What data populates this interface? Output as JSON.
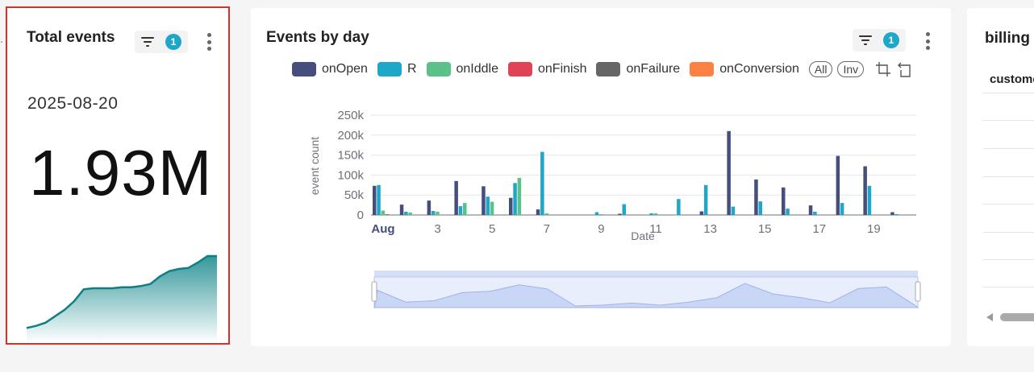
{
  "cards": {
    "total_events": {
      "title": "Total events",
      "filter_count": "1",
      "date": "2025-08-20",
      "value": "1.93M",
      "sparkline": [
        5,
        7,
        10,
        16,
        22,
        30,
        41,
        42,
        42,
        42,
        43,
        43,
        44,
        46,
        53,
        58,
        60,
        61,
        66,
        72,
        72
      ]
    },
    "events_by_day": {
      "title": "Events by day",
      "filter_count": "1",
      "legend_controls": {
        "all": "All",
        "inv": "Inv"
      }
    },
    "billing": {
      "title": "billing",
      "column_header": "custome"
    }
  },
  "colors": {
    "accent": "#1fa7c9",
    "selected_outline": "#d93025",
    "sparkline": "#0e7f86"
  },
  "chart_data": {
    "type": "bar",
    "xlabel": "Date",
    "ylabel": "event count",
    "ylim": [
      0,
      250000
    ],
    "yticks": [
      "0",
      "50k",
      "100k",
      "150k",
      "200k",
      "250k"
    ],
    "xticks": [
      "Aug",
      "3",
      "5",
      "7",
      "9",
      "11",
      "13",
      "15",
      "17",
      "19"
    ],
    "categories": [
      "Aug 1",
      "Aug 2",
      "Aug 3",
      "Aug 4",
      "Aug 5",
      "Aug 6",
      "Aug 7",
      "Aug 8",
      "Aug 9",
      "Aug 10",
      "Aug 11",
      "Aug 12",
      "Aug 13",
      "Aug 14",
      "Aug 15",
      "Aug 16",
      "Aug 17",
      "Aug 18",
      "Aug 19",
      "Aug 20"
    ],
    "series": [
      {
        "name": "onOpen",
        "color": "#454e7d",
        "values": [
          73000,
          26000,
          36000,
          85000,
          72000,
          43000,
          14000,
          0,
          0,
          3000,
          0,
          0,
          9000,
          210000,
          89000,
          69000,
          24000,
          148000,
          122000,
          7000
        ]
      },
      {
        "name": "R",
        "color": "#1fa7c9",
        "values": [
          75000,
          8000,
          10000,
          22000,
          46000,
          80000,
          158000,
          0,
          7000,
          27000,
          4000,
          40000,
          75000,
          21000,
          34000,
          16000,
          8000,
          30000,
          73000,
          2000
        ]
      },
      {
        "name": "onIddle",
        "color": "#5ac189",
        "values": [
          11000,
          6000,
          8000,
          30000,
          33000,
          93000,
          4000,
          0,
          2000,
          0,
          4000,
          0,
          0,
          0,
          0,
          0,
          0,
          0,
          0,
          0
        ]
      },
      {
        "name": "onFinish",
        "color": "#e04355",
        "values": [
          2000,
          0,
          0,
          0,
          0,
          0,
          0,
          0,
          0,
          0,
          0,
          0,
          0,
          0,
          0,
          0,
          0,
          0,
          0,
          0
        ]
      },
      {
        "name": "onFailure",
        "color": "#666666",
        "values": [
          0,
          0,
          0,
          0,
          0,
          0,
          0,
          0,
          0,
          0,
          0,
          0,
          0,
          0,
          0,
          0,
          0,
          0,
          0,
          0
        ]
      },
      {
        "name": "onConversion",
        "color": "#fc8143",
        "values": [
          0,
          0,
          0,
          0,
          0,
          0,
          0,
          0,
          0,
          0,
          0,
          0,
          0,
          0,
          0,
          0,
          0,
          0,
          0,
          0
        ]
      }
    ],
    "legend_placement": "top",
    "grid": true,
    "data_zoom": true
  }
}
